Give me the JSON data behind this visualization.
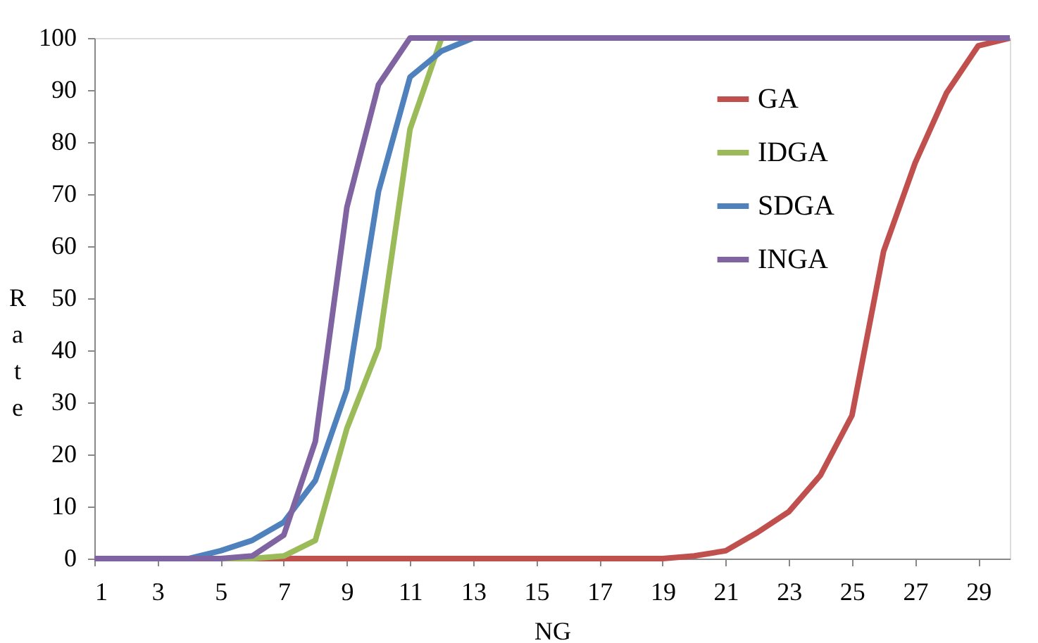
{
  "chart_data": {
    "type": "line",
    "xlabel": "NG",
    "ylabel": "Rate",
    "x": [
      1,
      2,
      3,
      4,
      5,
      6,
      7,
      8,
      9,
      10,
      11,
      12,
      13,
      14,
      15,
      16,
      17,
      18,
      19,
      20,
      21,
      22,
      23,
      24,
      25,
      26,
      27,
      28,
      29,
      30
    ],
    "xlim": [
      1,
      30
    ],
    "xticks": [
      1,
      3,
      5,
      7,
      9,
      11,
      13,
      15,
      17,
      19,
      21,
      23,
      25,
      27,
      29
    ],
    "ylim": [
      0,
      100
    ],
    "yticks": [
      0,
      10,
      20,
      30,
      40,
      50,
      60,
      70,
      80,
      90,
      100
    ],
    "grid": false,
    "legend": "top right",
    "marker": "none",
    "line_style": "solid",
    "series": [
      {
        "name": "GA",
        "color": "#c0504d",
        "values": [
          null,
          null,
          null,
          null,
          0,
          0,
          0,
          0,
          0,
          0,
          0,
          0,
          0,
          0,
          0,
          0,
          0,
          0,
          0,
          0.5,
          1.5,
          5,
          9,
          16,
          27.5,
          59,
          76,
          89.5,
          98.5,
          100
        ]
      },
      {
        "name": "IDGA",
        "color": "#9bbb59",
        "values": [
          null,
          null,
          null,
          null,
          0,
          0,
          0.5,
          3.5,
          25,
          40.5,
          82.5,
          100,
          null,
          null,
          null,
          null,
          null,
          null,
          null,
          null,
          null,
          null,
          null,
          null,
          null,
          null,
          null,
          null,
          null,
          null
        ]
      },
      {
        "name": "SDGA",
        "color": "#4f81bd",
        "values": [
          null,
          null,
          null,
          0,
          1.5,
          3.5,
          7,
          15,
          32.5,
          70.5,
          92.5,
          97.5,
          100,
          null,
          null,
          null,
          null,
          null,
          null,
          null,
          null,
          null,
          null,
          null,
          null,
          null,
          null,
          null,
          null,
          null
        ]
      },
      {
        "name": "INGA",
        "color": "#8064a2",
        "values": [
          0,
          0,
          0,
          0,
          0,
          0.5,
          4.5,
          22.5,
          67.5,
          91,
          100,
          100,
          100,
          100,
          100,
          100,
          100,
          100,
          100,
          100,
          100,
          100,
          100,
          100,
          100,
          100,
          100,
          100,
          100,
          100
        ]
      }
    ]
  }
}
